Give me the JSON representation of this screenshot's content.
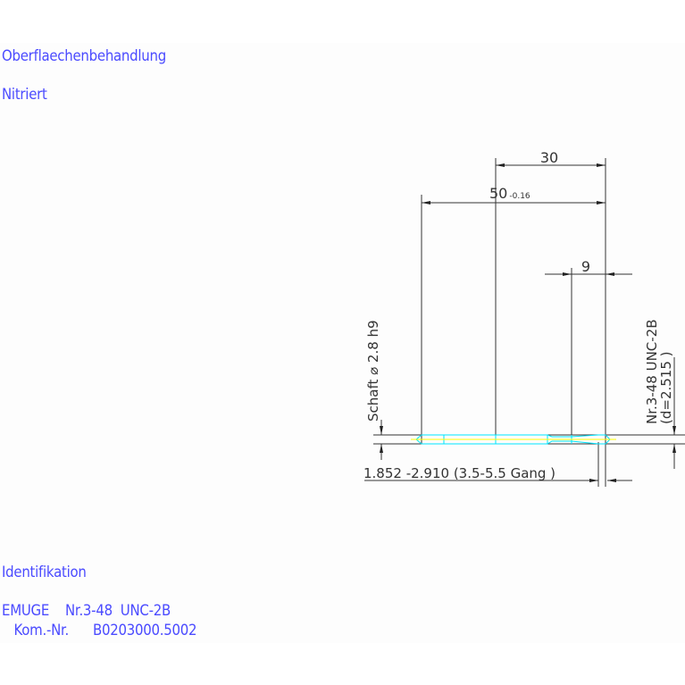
{
  "notes": {
    "surface_label": "Oberflaechenbehandlung",
    "surface_value": "Nitriert",
    "ident_label": "Identifikation",
    "ident_line1": "EMUGE    Nr.3-48  UNC-2B",
    "ident_line2": "   Kom.-Nr.      B0203000.5002"
  },
  "dimensions": {
    "thread_length": "30",
    "total_length": "50",
    "total_length_tol": "-0.16",
    "tip_length": "9",
    "shank": "Schaft  ⌀ 2.8  h9",
    "thread": "Nr.3-48  UNC-2B",
    "thread_d": "(d=2.515 )",
    "core": "1.852  -2.910 (3.5-5.5  Gang   )"
  },
  "colors": {
    "text": "#4b4bff",
    "outline": "#00e5ff",
    "centerline": "#ffff00",
    "dim": "#333333"
  }
}
